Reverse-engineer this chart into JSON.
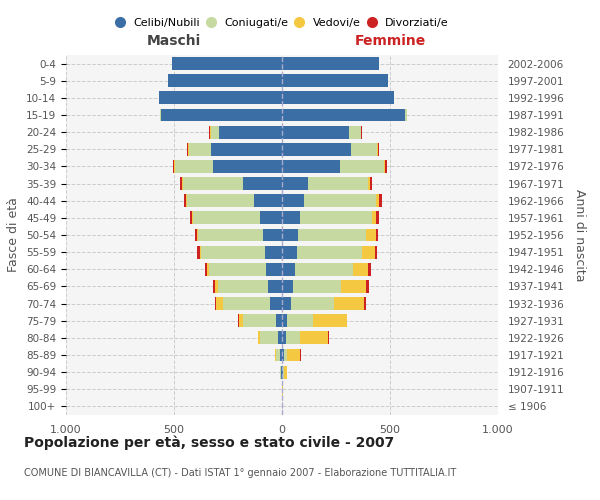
{
  "age_groups": [
    "100+",
    "95-99",
    "90-94",
    "85-89",
    "80-84",
    "75-79",
    "70-74",
    "65-69",
    "60-64",
    "55-59",
    "50-54",
    "45-49",
    "40-44",
    "35-39",
    "30-34",
    "25-29",
    "20-24",
    "15-19",
    "10-14",
    "5-9",
    "0-4"
  ],
  "birth_years": [
    "≤ 1906",
    "1907-1911",
    "1912-1916",
    "1917-1921",
    "1922-1926",
    "1927-1931",
    "1932-1936",
    "1937-1941",
    "1942-1946",
    "1947-1951",
    "1952-1956",
    "1957-1961",
    "1962-1966",
    "1967-1971",
    "1972-1976",
    "1977-1981",
    "1982-1986",
    "1987-1991",
    "1992-1996",
    "1997-2001",
    "2002-2006"
  ],
  "males": {
    "celibi": [
      2,
      2,
      5,
      8,
      20,
      30,
      55,
      65,
      75,
      80,
      90,
      100,
      130,
      180,
      320,
      330,
      290,
      560,
      570,
      530,
      510
    ],
    "coniugati": [
      0,
      0,
      5,
      20,
      80,
      150,
      220,
      230,
      265,
      295,
      300,
      310,
      310,
      280,
      175,
      100,
      40,
      5,
      0,
      0,
      0
    ],
    "vedovi": [
      0,
      0,
      0,
      5,
      10,
      20,
      30,
      15,
      5,
      5,
      5,
      5,
      5,
      5,
      5,
      5,
      5,
      0,
      0,
      0,
      0
    ],
    "divorziati": [
      0,
      0,
      0,
      0,
      2,
      2,
      5,
      8,
      10,
      12,
      8,
      10,
      8,
      8,
      5,
      5,
      2,
      0,
      0,
      0,
      0
    ]
  },
  "females": {
    "nubili": [
      2,
      2,
      5,
      10,
      20,
      25,
      40,
      50,
      60,
      70,
      75,
      85,
      100,
      120,
      270,
      320,
      310,
      570,
      520,
      490,
      450
    ],
    "coniugate": [
      0,
      0,
      5,
      15,
      65,
      120,
      200,
      225,
      270,
      300,
      315,
      330,
      335,
      280,
      200,
      120,
      55,
      10,
      0,
      0,
      0
    ],
    "vedove": [
      0,
      2,
      15,
      60,
      130,
      155,
      140,
      115,
      70,
      60,
      45,
      20,
      15,
      8,
      5,
      5,
      2,
      0,
      0,
      0,
      0
    ],
    "divorziate": [
      0,
      0,
      0,
      2,
      2,
      2,
      10,
      15,
      12,
      10,
      10,
      15,
      12,
      8,
      12,
      5,
      2,
      0,
      0,
      0,
      0
    ]
  },
  "colors": {
    "celibi_nubili": "#3A6EA5",
    "coniugati_e": "#C5D9A0",
    "vedovi_e": "#F5C842",
    "divorziati_e": "#CC2222"
  },
  "xlim": 1000,
  "title": "Popolazione per età, sesso e stato civile - 2007",
  "subtitle": "COMUNE DI BIANCAVILLA (CT) - Dati ISTAT 1° gennaio 2007 - Elaborazione TUTTITALIA.IT",
  "ylabel_left": "Fasce di età",
  "ylabel_right": "Anni di nascita",
  "xlabel_left": "Maschi",
  "xlabel_right": "Femmine",
  "background_color": "#f5f5f5",
  "grid_color": "#cccccc",
  "legend_labels": [
    "Celibi/Nubili",
    "Coniugati/e",
    "Vedovi/e",
    "Divorziati/e"
  ]
}
